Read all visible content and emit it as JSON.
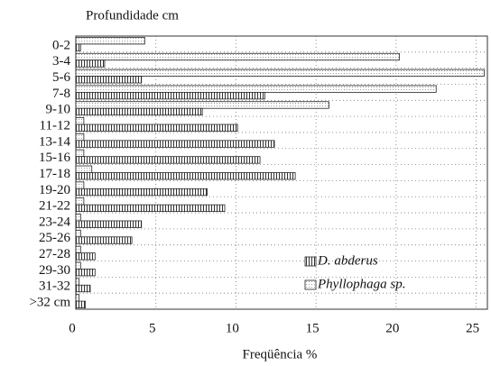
{
  "chart_data": {
    "type": "hbar",
    "title": "Profundidade cm",
    "xlabel": "Freqüência %",
    "categories": [
      "0-2",
      "3-4",
      "5-6",
      "7-8",
      "9-10",
      "11-12",
      "13-14",
      "15-16",
      "17-18",
      "19-20",
      "21-22",
      "23-24",
      "25-26",
      "27-28",
      "29-30",
      "31-32",
      ">32 cm"
    ],
    "series": [
      {
        "name": "Phyllophaga sp.",
        "color": "#999999",
        "values": [
          4.3,
          20.2,
          25.5,
          22.5,
          15.8,
          0.5,
          0.5,
          0.5,
          1.0,
          0.5,
          0.5,
          0.3,
          0.3,
          0.3,
          0.3,
          0.2,
          0.2
        ]
      },
      {
        "name": "D. abderus",
        "color": "#333333",
        "values": [
          0.3,
          1.8,
          4.1,
          11.8,
          7.9,
          10.1,
          12.4,
          11.5,
          13.7,
          8.2,
          9.3,
          4.1,
          3.5,
          1.2,
          1.2,
          0.9,
          0.6
        ]
      }
    ],
    "xlim": [
      0,
      25.7
    ],
    "xticks": [
      0,
      5,
      10,
      15,
      20,
      25
    ],
    "grid": true,
    "legend": "lower right"
  }
}
